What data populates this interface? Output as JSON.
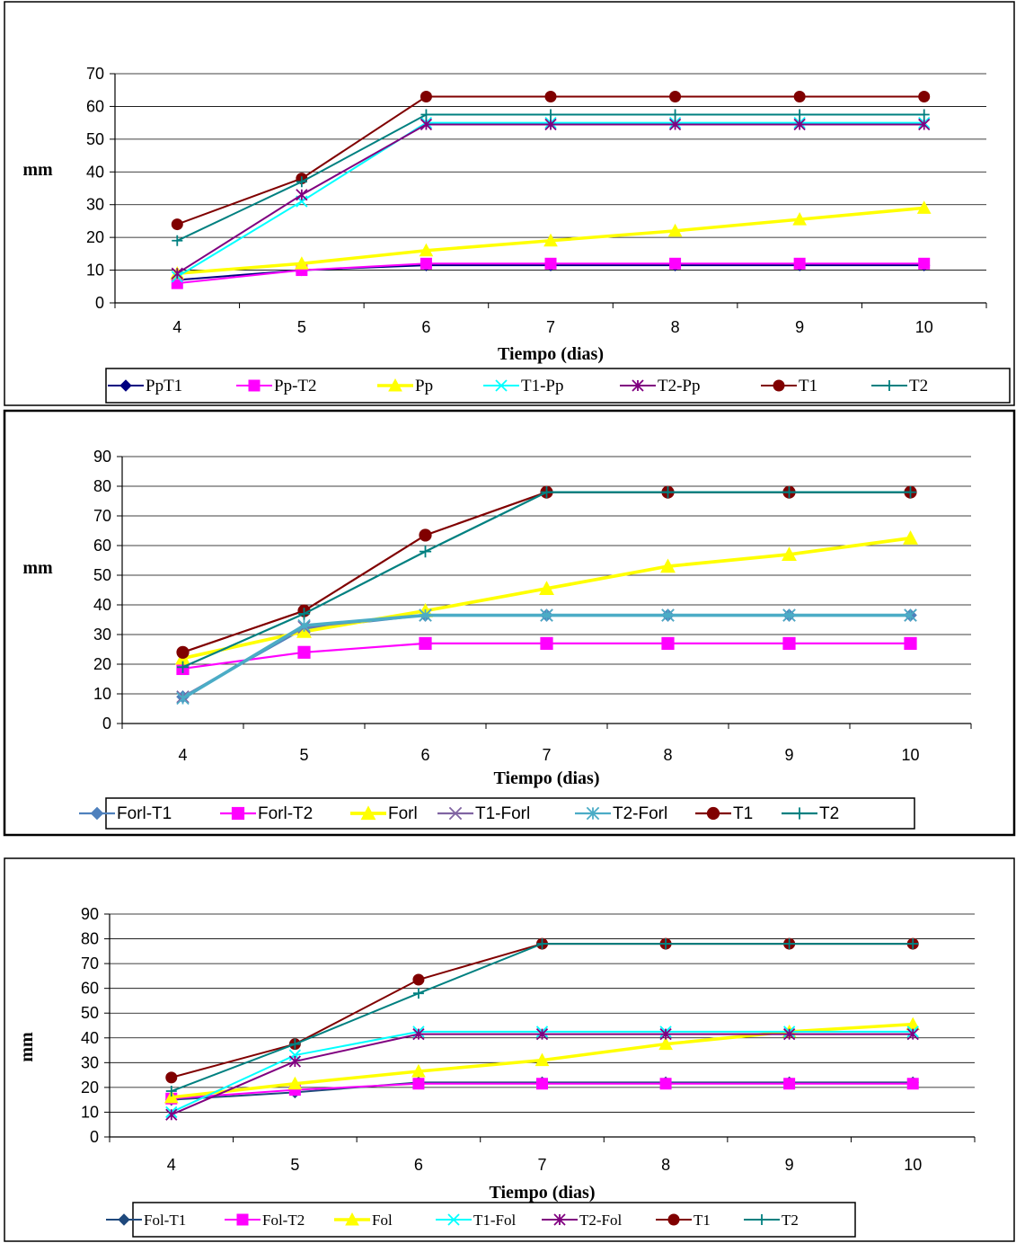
{
  "chart_data": [
    {
      "type": "line",
      "xlabel": "Tiempo (dias)",
      "ylabel": "mm",
      "ylim": [
        0,
        70
      ],
      "yticks": [
        0,
        10,
        20,
        30,
        40,
        50,
        60,
        70
      ],
      "categories": [
        "4",
        "5",
        "6",
        "7",
        "8",
        "9",
        "10"
      ],
      "grid": "horizontal",
      "legend_position": "bottom",
      "series": [
        {
          "name": "PpT1",
          "color": "#000080",
          "marker": "diamond",
          "values": [
            7,
            10,
            11.5,
            11.5,
            11.5,
            11.5,
            11.5
          ]
        },
        {
          "name": "Pp-T2",
          "color": "#FF00FF",
          "marker": "square",
          "values": [
            6,
            10,
            12,
            12,
            12,
            12,
            12
          ]
        },
        {
          "name": "Pp",
          "color": "#FFFF00",
          "marker": "triangle",
          "values": [
            9,
            12,
            16,
            19,
            22,
            25.5,
            29
          ]
        },
        {
          "name": "T1-Pp",
          "color": "#00FFFF",
          "marker": "x",
          "values": [
            8,
            31,
            55,
            55,
            55,
            55,
            55
          ]
        },
        {
          "name": "T2-Pp",
          "color": "#800080",
          "marker": "star",
          "values": [
            9,
            33,
            54.5,
            54.5,
            54.5,
            54.5,
            54.5
          ]
        },
        {
          "name": "T1",
          "color": "#800000",
          "marker": "circle",
          "values": [
            24,
            38,
            63,
            63,
            63,
            63,
            63
          ]
        },
        {
          "name": "T2",
          "color": "#008080",
          "marker": "plus",
          "values": [
            19,
            37,
            57.5,
            57.5,
            57.5,
            57.5,
            57.5
          ]
        }
      ]
    },
    {
      "type": "line",
      "xlabel": "Tiempo (dias)",
      "ylabel": "mm",
      "ylim": [
        0,
        90
      ],
      "yticks": [
        0,
        10,
        20,
        30,
        40,
        50,
        60,
        70,
        80,
        90
      ],
      "categories": [
        "4",
        "5",
        "6",
        "7",
        "8",
        "9",
        "10"
      ],
      "grid": "horizontal",
      "legend_position": "bottom",
      "series": [
        {
          "name": "Forl-T1",
          "color": "#4F81BD",
          "marker": "diamond",
          "values": [
            9,
            32,
            36.5,
            36.5,
            36.5,
            36.5,
            36.5
          ]
        },
        {
          "name": "Forl-T2",
          "color": "#FF00FF",
          "marker": "square",
          "values": [
            18.5,
            24,
            27,
            27,
            27,
            27,
            27
          ]
        },
        {
          "name": "Forl",
          "color": "#FFFF00",
          "marker": "triangle",
          "values": [
            22,
            31,
            38,
            45.5,
            53,
            57,
            62.5
          ]
        },
        {
          "name": "T1-Forl",
          "color": "#8064A2",
          "marker": "x",
          "values": [
            9,
            32.5,
            36.5,
            36.5,
            36.5,
            36.5,
            36.5
          ]
        },
        {
          "name": "T2-Forl",
          "color": "#4BACC6",
          "marker": "star",
          "values": [
            8.5,
            33,
            36.5,
            36.5,
            36.5,
            36.5,
            36.5
          ]
        },
        {
          "name": "T1",
          "color": "#800000",
          "marker": "circle",
          "values": [
            24,
            38,
            63.5,
            78,
            78,
            78,
            78
          ]
        },
        {
          "name": "T2",
          "color": "#008080",
          "marker": "plus",
          "values": [
            19,
            37,
            58,
            78,
            78,
            78,
            78
          ]
        }
      ]
    },
    {
      "type": "line",
      "xlabel": "Tiempo (dias)",
      "ylabel": "mm",
      "ylim": [
        0,
        90
      ],
      "yticks": [
        0,
        10,
        20,
        30,
        40,
        50,
        60,
        70,
        80,
        90
      ],
      "categories": [
        "4",
        "5",
        "6",
        "7",
        "8",
        "9",
        "10"
      ],
      "grid": "horizontal",
      "legend_position": "bottom",
      "series": [
        {
          "name": "Fol-T1",
          "color": "#1F497D",
          "marker": "diamond",
          "values": [
            15,
            18,
            22,
            22,
            22,
            22,
            22
          ]
        },
        {
          "name": "Fol-T2",
          "color": "#FF00FF",
          "marker": "square",
          "values": [
            15.5,
            19,
            21.5,
            21.5,
            21.5,
            21.5,
            21.5
          ]
        },
        {
          "name": "Fol",
          "color": "#FFFF00",
          "marker": "triangle",
          "values": [
            16,
            21.5,
            26.5,
            31,
            37.5,
            42.5,
            45.5
          ]
        },
        {
          "name": "T1-Fol",
          "color": "#00FFFF",
          "marker": "x",
          "values": [
            10,
            33,
            42.5,
            42.5,
            42.5,
            42.5,
            42.5
          ]
        },
        {
          "name": "T2-Fol",
          "color": "#800080",
          "marker": "star",
          "values": [
            9,
            30.5,
            41.5,
            41.5,
            41.5,
            41.5,
            41.5
          ]
        },
        {
          "name": "T1",
          "color": "#800000",
          "marker": "circle",
          "values": [
            24,
            37.5,
            63.5,
            78,
            78,
            78,
            78
          ]
        },
        {
          "name": "T2",
          "color": "#008080",
          "marker": "plus",
          "values": [
            18.5,
            37.5,
            58,
            78,
            78,
            78,
            78
          ]
        }
      ]
    }
  ]
}
